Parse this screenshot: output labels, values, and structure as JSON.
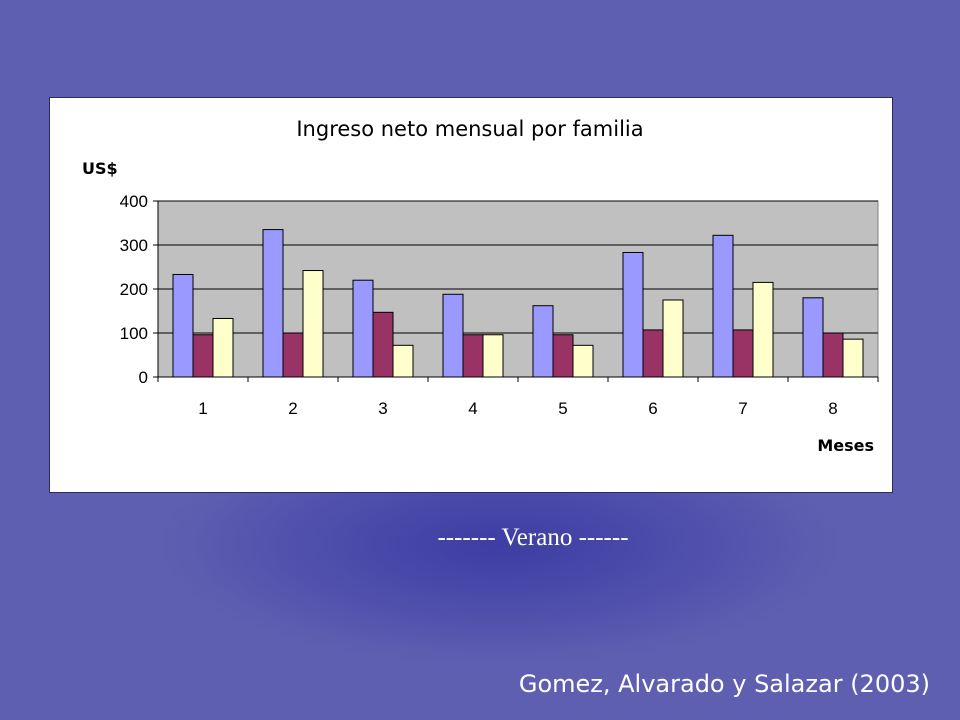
{
  "chart_data": {
    "type": "bar",
    "title": "Ingreso neto mensual por familia",
    "xlabel": "Meses",
    "ylabel": "US$",
    "ylim": [
      0,
      400
    ],
    "yticks": [
      "0",
      "100",
      "200",
      "300",
      "400"
    ],
    "categories": [
      "1",
      "2",
      "3",
      "4",
      "5",
      "6",
      "7",
      "8"
    ],
    "grid": true,
    "legend": "none",
    "series": [
      {
        "values": [
          233,
          335,
          220,
          188,
          162,
          283,
          322,
          180
        ],
        "color": "#9999ff"
      },
      {
        "values": [
          96,
          100,
          147,
          96,
          96,
          107,
          107,
          100
        ],
        "color": "#993366"
      },
      {
        "values": [
          133,
          242,
          72,
          96,
          72,
          175,
          215,
          86
        ],
        "color": "#ffffcc"
      }
    ],
    "plot_background": "#c0c0c0"
  },
  "caption": "------- Verano ------",
  "citation": "Gomez, Alvarado y Salazar (2003)"
}
